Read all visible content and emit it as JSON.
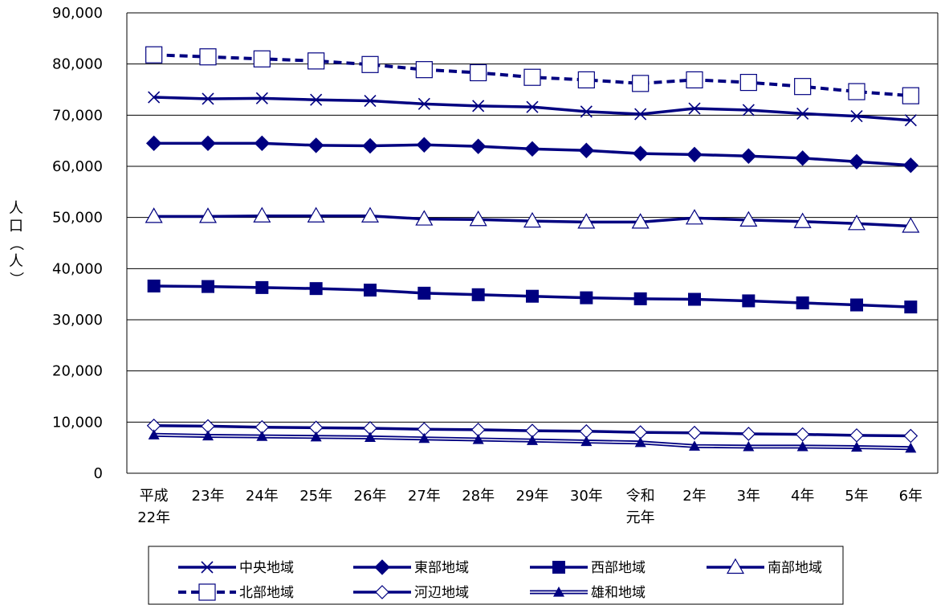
{
  "chart_data": {
    "type": "line",
    "title": "",
    "ylabel": "人口（人）",
    "xlabel": "",
    "ylim": [
      0,
      90000
    ],
    "yticks": [
      0,
      10000,
      20000,
      30000,
      40000,
      50000,
      60000,
      70000,
      80000,
      90000
    ],
    "ytick_labels": [
      "0",
      "10,000",
      "20,000",
      "30,000",
      "40,000",
      "50,000",
      "60,000",
      "70,000",
      "80,000",
      "90,000"
    ],
    "grid": true,
    "legend_placement": "bottom",
    "categories": [
      [
        "平成",
        "22年"
      ],
      [
        "23年"
      ],
      [
        "24年"
      ],
      [
        "25年"
      ],
      [
        "26年"
      ],
      [
        "27年"
      ],
      [
        "28年"
      ],
      [
        "29年"
      ],
      [
        "30年"
      ],
      [
        "令和",
        "元年"
      ],
      [
        "2年"
      ],
      [
        "3年"
      ],
      [
        "4年"
      ],
      [
        "5年"
      ],
      [
        "6年"
      ]
    ],
    "series": [
      {
        "name": "中央地域",
        "marker": "x",
        "line": "solid",
        "color": "#000080",
        "values": [
          73500,
          73200,
          73300,
          73000,
          72800,
          72200,
          71800,
          71600,
          70700,
          70200,
          71300,
          71000,
          70300,
          69800,
          69000
        ]
      },
      {
        "name": "東部地域",
        "marker": "diamond-filled",
        "line": "solid",
        "color": "#000080",
        "values": [
          64500,
          64500,
          64500,
          64100,
          64000,
          64200,
          63900,
          63400,
          63100,
          62500,
          62300,
          62000,
          61600,
          60900,
          60200
        ]
      },
      {
        "name": "西部地域",
        "marker": "square-filled",
        "line": "solid",
        "color": "#000080",
        "values": [
          36600,
          36500,
          36300,
          36100,
          35800,
          35200,
          34900,
          34600,
          34300,
          34100,
          34000,
          33700,
          33300,
          32900,
          32500
        ]
      },
      {
        "name": "南部地域",
        "marker": "triangle-open",
        "line": "solid",
        "color": "#000080",
        "values": [
          50200,
          50200,
          50300,
          50300,
          50300,
          49700,
          49600,
          49300,
          49100,
          49100,
          49900,
          49500,
          49200,
          48800,
          48300
        ]
      },
      {
        "name": "北部地域",
        "marker": "square-open",
        "line": "dashed",
        "color": "#000080",
        "values": [
          81800,
          81400,
          81000,
          80600,
          79900,
          78900,
          78300,
          77400,
          76900,
          76200,
          76900,
          76400,
          75600,
          74600,
          73800
        ]
      },
      {
        "name": "河辺地域",
        "marker": "diamond-open",
        "line": "solid",
        "color": "#000080",
        "values": [
          9300,
          9200,
          9000,
          8900,
          8800,
          8600,
          8500,
          8300,
          8200,
          8000,
          7900,
          7700,
          7600,
          7400,
          7300
        ]
      },
      {
        "name": "雄和地域",
        "marker": "triangle-filled",
        "line": "double",
        "color": "#000080",
        "values": [
          7500,
          7300,
          7200,
          7100,
          7000,
          6800,
          6600,
          6400,
          6200,
          6000,
          5300,
          5200,
          5200,
          5100,
          4900
        ]
      }
    ]
  }
}
